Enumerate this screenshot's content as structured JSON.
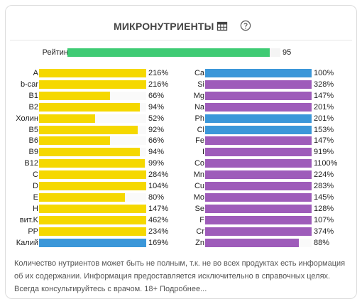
{
  "header": {
    "title": "МИКРОНУТРИЕНТЫ",
    "table_icon": "table-icon",
    "help_icon": "help-circle-icon"
  },
  "rating": {
    "label": "Рейтинг",
    "value": "95",
    "fraction": 0.95,
    "color": "#3fcb74"
  },
  "colors": {
    "vitamin": "#f5d800",
    "mineral_blue": "#3b97d9",
    "mineral_purple": "#9e5cba",
    "fill_full": "#3b97d9"
  },
  "left_column": [
    {
      "label": "A",
      "pct": "216%",
      "value": 216,
      "color": "#f5d800"
    },
    {
      "label": "b-car",
      "pct": "216%",
      "value": 216,
      "color": "#f5d800"
    },
    {
      "label": "B1",
      "pct": "66%",
      "value": 66,
      "color": "#f5d800"
    },
    {
      "label": "B2",
      "pct": "94%",
      "value": 94,
      "color": "#f5d800"
    },
    {
      "label": "Холин",
      "pct": "52%",
      "value": 52,
      "color": "#f5d800"
    },
    {
      "label": "B5",
      "pct": "92%",
      "value": 92,
      "color": "#f5d800"
    },
    {
      "label": "B6",
      "pct": "66%",
      "value": 66,
      "color": "#f5d800"
    },
    {
      "label": "B9",
      "pct": "94%",
      "value": 94,
      "color": "#f5d800"
    },
    {
      "label": "B12",
      "pct": "99%",
      "value": 99,
      "color": "#f5d800"
    },
    {
      "label": "C",
      "pct": "284%",
      "value": 284,
      "color": "#f5d800"
    },
    {
      "label": "D",
      "pct": "104%",
      "value": 104,
      "color": "#f5d800"
    },
    {
      "label": "E",
      "pct": "80%",
      "value": 80,
      "color": "#f5d800"
    },
    {
      "label": "H",
      "pct": "147%",
      "value": 147,
      "color": "#f5d800"
    },
    {
      "label": "вит.K",
      "pct": "462%",
      "value": 462,
      "color": "#f5d800"
    },
    {
      "label": "PP",
      "pct": "234%",
      "value": 234,
      "color": "#f5d800"
    },
    {
      "label": "Калий",
      "pct": "169%",
      "value": 169,
      "color": "#3b97d9"
    }
  ],
  "right_column": [
    {
      "label": "Ca",
      "pct": "100%",
      "value": 100,
      "color": "#3b97d9"
    },
    {
      "label": "Si",
      "pct": "328%",
      "value": 328,
      "color": "#9e5cba"
    },
    {
      "label": "Mg",
      "pct": "147%",
      "value": 147,
      "color": "#9e5cba"
    },
    {
      "label": "Na",
      "pct": "201%",
      "value": 201,
      "color": "#9e5cba"
    },
    {
      "label": "Ph",
      "pct": "201%",
      "value": 201,
      "color": "#3b97d9"
    },
    {
      "label": "Cl",
      "pct": "153%",
      "value": 153,
      "color": "#3b97d9"
    },
    {
      "label": "Fe",
      "pct": "147%",
      "value": 147,
      "color": "#9e5cba"
    },
    {
      "label": "I",
      "pct": "919%",
      "value": 919,
      "color": "#9e5cba"
    },
    {
      "label": "Co",
      "pct": "1100%",
      "value": 1100,
      "color": "#9e5cba"
    },
    {
      "label": "Mn",
      "pct": "224%",
      "value": 224,
      "color": "#9e5cba"
    },
    {
      "label": "Cu",
      "pct": "283%",
      "value": 283,
      "color": "#9e5cba"
    },
    {
      "label": "Mo",
      "pct": "145%",
      "value": 145,
      "color": "#9e5cba"
    },
    {
      "label": "Se",
      "pct": "128%",
      "value": 128,
      "color": "#9e5cba"
    },
    {
      "label": "F",
      "pct": "107%",
      "value": 107,
      "color": "#9e5cba"
    },
    {
      "label": "Cr",
      "pct": "374%",
      "value": 374,
      "color": "#9e5cba"
    },
    {
      "label": "Zn",
      "pct": "88%",
      "value": 88,
      "color": "#9e5cba"
    }
  ],
  "footer": {
    "text": "Количество нутриентов может быть не полным, т.к. не во всех продуктах есть информация об их содержании. Информация предоставляется исключительно в справочных целях. Всегда консультируйтесь с врачом. 18+",
    "more_link": "Подробнее..."
  }
}
